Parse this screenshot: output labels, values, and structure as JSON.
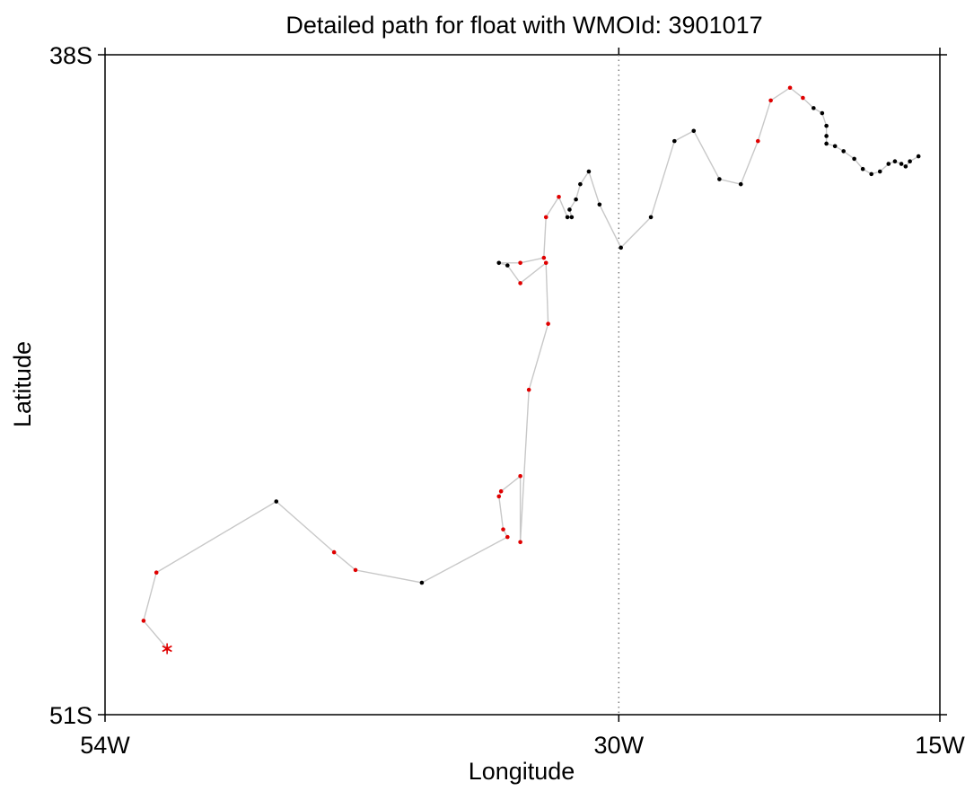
{
  "chart_data": {
    "type": "scatter",
    "title": "Detailed path for float with WMOId: 3901017",
    "xlabel": "Longitude",
    "ylabel": "Latitude",
    "xlim": [
      -54,
      -15
    ],
    "ylim": [
      -51,
      -38
    ],
    "x_ticks": [
      {
        "value": -54,
        "label": "54W"
      },
      {
        "value": -30,
        "label": "30W"
      },
      {
        "value": -15,
        "label": "15W"
      }
    ],
    "y_ticks": [
      {
        "value": -38,
        "label": "38S"
      },
      {
        "value": -51,
        "label": "51S"
      }
    ],
    "reference_line": {
      "x": -30,
      "style": "dotted"
    },
    "colors": {
      "path_line": "#c8c8c8",
      "black_point": "#000000",
      "red_point": "#e00000",
      "start_marker": "#e00000",
      "reference_line": "#808080"
    },
    "start_marker": {
      "lon": -51.1,
      "lat": -49.7,
      "symbol": "asterisk"
    },
    "series": [
      {
        "values": [
          {
            "lon": -51.1,
            "lat": -49.7,
            "color": "red"
          },
          {
            "lon": -52.2,
            "lat": -49.15,
            "color": "red"
          },
          {
            "lon": -51.6,
            "lat": -48.2,
            "color": "red"
          },
          {
            "lon": -46.0,
            "lat": -46.8,
            "color": "black"
          },
          {
            "lon": -43.3,
            "lat": -47.8,
            "color": "red"
          },
          {
            "lon": -42.3,
            "lat": -48.15,
            "color": "red"
          },
          {
            "lon": -39.2,
            "lat": -48.4,
            "color": "black"
          },
          {
            "lon": -35.2,
            "lat": -47.5,
            "color": "red"
          },
          {
            "lon": -35.4,
            "lat": -47.35,
            "color": "red"
          },
          {
            "lon": -35.6,
            "lat": -46.7,
            "color": "red"
          },
          {
            "lon": -35.5,
            "lat": -46.6,
            "color": "red"
          },
          {
            "lon": -34.6,
            "lat": -46.3,
            "color": "red"
          },
          {
            "lon": -34.6,
            "lat": -47.6,
            "color": "red"
          },
          {
            "lon": -34.2,
            "lat": -44.6,
            "color": "red"
          },
          {
            "lon": -33.3,
            "lat": -43.3,
            "color": "red"
          },
          {
            "lon": -33.4,
            "lat": -42.1,
            "color": "red"
          },
          {
            "lon": -34.6,
            "lat": -42.5,
            "color": "red"
          },
          {
            "lon": -35.2,
            "lat": -42.15,
            "color": "black"
          },
          {
            "lon": -35.6,
            "lat": -42.1,
            "color": "black"
          },
          {
            "lon": -34.6,
            "lat": -42.1,
            "color": "red"
          },
          {
            "lon": -33.5,
            "lat": -42.0,
            "color": "red"
          },
          {
            "lon": -33.4,
            "lat": -41.2,
            "color": "red"
          },
          {
            "lon": -32.8,
            "lat": -40.8,
            "color": "red"
          },
          {
            "lon": -32.4,
            "lat": -41.2,
            "color": "black"
          },
          {
            "lon": -32.2,
            "lat": -41.2,
            "color": "black"
          },
          {
            "lon": -32.3,
            "lat": -41.05,
            "color": "black"
          },
          {
            "lon": -32.0,
            "lat": -40.85,
            "color": "black"
          },
          {
            "lon": -31.8,
            "lat": -40.55,
            "color": "black"
          },
          {
            "lon": -31.4,
            "lat": -40.3,
            "color": "black"
          },
          {
            "lon": -30.9,
            "lat": -40.95,
            "color": "black"
          },
          {
            "lon": -29.9,
            "lat": -41.8,
            "color": "black"
          },
          {
            "lon": -28.5,
            "lat": -41.2,
            "color": "black"
          },
          {
            "lon": -27.4,
            "lat": -39.7,
            "color": "black"
          },
          {
            "lon": -26.5,
            "lat": -39.5,
            "color": "black"
          },
          {
            "lon": -25.3,
            "lat": -40.45,
            "color": "black"
          },
          {
            "lon": -24.3,
            "lat": -40.55,
            "color": "black"
          },
          {
            "lon": -23.5,
            "lat": -39.7,
            "color": "red"
          },
          {
            "lon": -22.9,
            "lat": -38.9,
            "color": "red"
          },
          {
            "lon": -22.0,
            "lat": -38.65,
            "color": "red"
          },
          {
            "lon": -21.4,
            "lat": -38.85,
            "color": "red"
          },
          {
            "lon": -20.9,
            "lat": -39.05,
            "color": "black"
          },
          {
            "lon": -20.5,
            "lat": -39.15,
            "color": "black"
          },
          {
            "lon": -20.3,
            "lat": -39.4,
            "color": "black"
          },
          {
            "lon": -20.3,
            "lat": -39.6,
            "color": "black"
          },
          {
            "lon": -20.3,
            "lat": -39.75,
            "color": "black"
          },
          {
            "lon": -19.9,
            "lat": -39.8,
            "color": "black"
          },
          {
            "lon": -19.5,
            "lat": -39.9,
            "color": "black"
          },
          {
            "lon": -19.0,
            "lat": -40.05,
            "color": "black"
          },
          {
            "lon": -18.6,
            "lat": -40.25,
            "color": "black"
          },
          {
            "lon": -18.2,
            "lat": -40.35,
            "color": "black"
          },
          {
            "lon": -17.8,
            "lat": -40.3,
            "color": "black"
          },
          {
            "lon": -17.4,
            "lat": -40.15,
            "color": "black"
          },
          {
            "lon": -17.1,
            "lat": -40.1,
            "color": "black"
          },
          {
            "lon": -16.8,
            "lat": -40.15,
            "color": "black"
          },
          {
            "lon": -16.6,
            "lat": -40.2,
            "color": "black"
          },
          {
            "lon": -16.4,
            "lat": -40.1,
            "color": "black"
          },
          {
            "lon": -16.0,
            "lat": -40.0,
            "color": "black"
          }
        ]
      }
    ]
  }
}
